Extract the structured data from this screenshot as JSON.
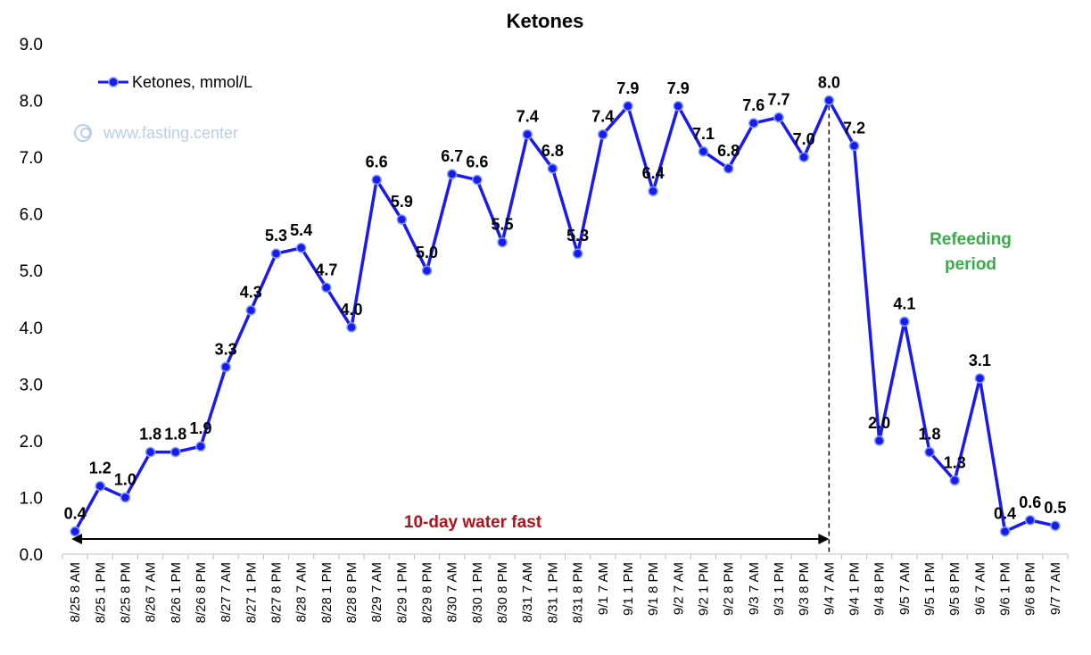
{
  "chart_data": {
    "type": "line",
    "title": "Ketones",
    "xlabel": "",
    "ylabel": "",
    "ylim": [
      0,
      9
    ],
    "yticks": [
      "0.0",
      "1.0",
      "2.0",
      "3.0",
      "4.0",
      "5.0",
      "6.0",
      "7.0",
      "8.0",
      "9.0"
    ],
    "grid": false,
    "legend_position": "top-left",
    "categories": [
      "8/25 8 AM",
      "8/25 1 PM",
      "8/25 8 PM",
      "8/26 7 AM",
      "8/26 1 PM",
      "8/26 8 PM",
      "8/27 7 AM",
      "8/27 1 PM",
      "8/27 8 PM",
      "8/28 7 AM",
      "8/28 1 PM",
      "8/28 8 PM",
      "8/29 7 AM",
      "8/29 1 PM",
      "8/29 8 PM",
      "8/30 7 AM",
      "8/30 1 PM",
      "8/30 8 PM",
      "8/31 7 AM",
      "8/31 1 PM",
      "8/31 8 PM",
      "9/1 7 AM",
      "9/1 1 PM",
      "9/1 8 PM",
      "9/2 7 AM",
      "9/2 1 PM",
      "9/2 8 PM",
      "9/3 7 AM",
      "9/3 1 PM",
      "9/3 8 PM",
      "9/4 7 AM",
      "9/4 1 PM",
      "9/4 8 PM",
      "9/5 7 AM",
      "9/5 1 PM",
      "9/5 8 PM",
      "9/6 7 AM",
      "9/6 1 PM",
      "9/6 8 PM",
      "9/7 7 AM"
    ],
    "series": [
      {
        "name": "Ketones, mmol/L",
        "color": "#1a1aee",
        "values": [
          0.4,
          1.2,
          1.0,
          1.8,
          1.8,
          1.9,
          3.3,
          4.3,
          5.3,
          5.4,
          4.7,
          4.0,
          6.6,
          5.9,
          5.0,
          6.7,
          6.6,
          5.5,
          7.4,
          6.8,
          5.3,
          7.4,
          7.9,
          6.4,
          7.9,
          7.1,
          6.8,
          7.6,
          7.7,
          7.0,
          8.0,
          7.2,
          2.0,
          4.1,
          1.8,
          1.3,
          3.1,
          0.4,
          0.6,
          0.5
        ],
        "labels": [
          "0.4",
          "1.2",
          "1.0",
          "1.8",
          "1.8",
          "1.9",
          "3.3",
          "4.3",
          "5.3",
          "5.4",
          "4.7",
          "4.0",
          "6.6",
          "5.9",
          "5.0",
          "6.7",
          "6.6",
          "5.5",
          "7.4",
          "6.8",
          "5.3",
          "7.4",
          "7.9",
          "6.4",
          "7.9",
          "7.1",
          "6.8",
          "7.6",
          "7.7",
          "7.0",
          "8.0",
          "7.2",
          "2.0",
          "4.1",
          "1.8",
          "1.3",
          "3.1",
          "0.4",
          "0.6",
          "0.5"
        ]
      }
    ],
    "annotations": {
      "fast_label": "10-day water fast",
      "fast_color": "#b0121a",
      "refeed_label_line1": "Refeeding",
      "refeed_label_line2": "period",
      "refeed_color": "#3caa4a",
      "watermark": "www.fasting.center",
      "fast_start_category": "8/25 8 AM",
      "fast_end_category": "9/4 7 AM"
    }
  }
}
